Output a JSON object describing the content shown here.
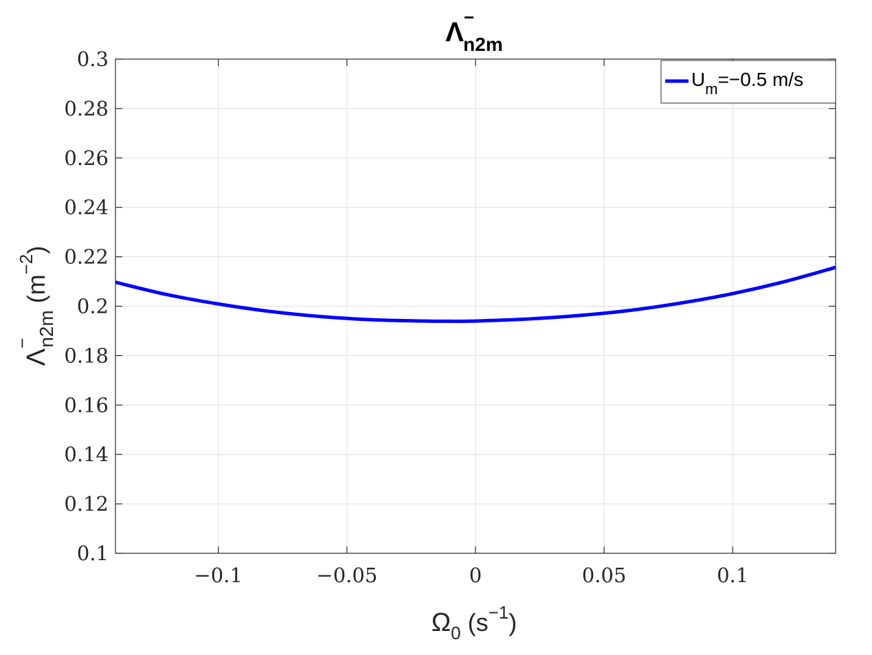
{
  "chart_data": {
    "type": "line",
    "title": {
      "main": "Λ",
      "sup": "−",
      "sub": "n2m"
    },
    "xlabel": {
      "main": "Ω",
      "sub": "0",
      "pre": " (s",
      "sup": "−1",
      "post": ")"
    },
    "ylabel": {
      "main": "Λ",
      "sup": "−",
      "sub": "n2m",
      "pre": " (m",
      "sup2": "−2",
      "post": ")"
    },
    "xlim": [
      -0.14,
      0.14
    ],
    "ylim": [
      0.1,
      0.3
    ],
    "xticks": [
      -0.1,
      -0.05,
      0,
      0.05,
      0.1
    ],
    "xtick_labels": [
      "−0.1",
      "−0.05",
      "0",
      "0.05",
      "0.1"
    ],
    "yticks": [
      0.1,
      0.12,
      0.14,
      0.16,
      0.18,
      0.2,
      0.22,
      0.24,
      0.26,
      0.28,
      0.3
    ],
    "ytick_labels": [
      "0.1",
      "0.12",
      "0.14",
      "0.16",
      "0.18",
      "0.2",
      "0.22",
      "0.24",
      "0.26",
      "0.28",
      "0.3"
    ],
    "grid": true,
    "legend_position": "top-right",
    "legend": {
      "main": "U",
      "sub": "m",
      "rest": "=−0.5 m/s"
    },
    "series": [
      {
        "color": "#0000ff",
        "x": [
          -0.14,
          -0.12,
          -0.1,
          -0.08,
          -0.06,
          -0.04,
          -0.02,
          -0.01,
          0,
          0.02,
          0.04,
          0.06,
          0.08,
          0.1,
          0.12,
          0.14
        ],
        "y": [
          0.2097,
          0.2047,
          0.2009,
          0.1979,
          0.1958,
          0.1945,
          0.194,
          0.1939,
          0.194,
          0.1948,
          0.1962,
          0.1983,
          0.2013,
          0.2051,
          0.2099,
          0.2157
        ]
      }
    ]
  }
}
